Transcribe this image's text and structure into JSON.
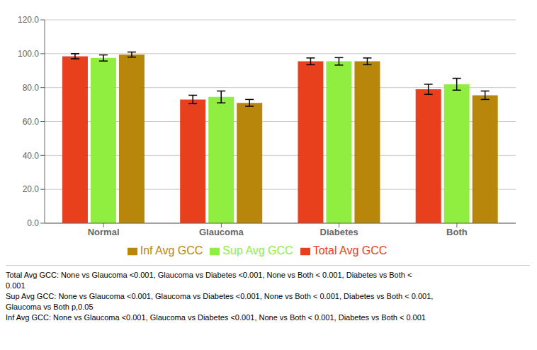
{
  "chart_data": {
    "type": "bar",
    "categories": [
      "Normal",
      "Glaucoma",
      "Diabetes",
      "Both"
    ],
    "series": [
      {
        "name": "Total Avg GCC",
        "color": "#E8401C",
        "values": [
          98.5,
          73.0,
          95.5,
          79.0
        ],
        "errors": [
          1.5,
          2.5,
          2.0,
          3.0
        ]
      },
      {
        "name": "Sup Avg GCC",
        "color": "#90EE40",
        "values": [
          97.5,
          74.5,
          95.5,
          82.0
        ],
        "errors": [
          1.8,
          3.5,
          2.2,
          3.5
        ]
      },
      {
        "name": "Inf Avg GCC",
        "color": "#B8860B",
        "values": [
          99.5,
          71.0,
          95.5,
          75.5
        ],
        "errors": [
          1.5,
          2.0,
          2.0,
          2.5
        ]
      }
    ],
    "ylim": [
      0,
      120
    ],
    "yticks": [
      {
        "value": 0,
        "label": "0.0"
      },
      {
        "value": 20,
        "label": "20.0"
      },
      {
        "value": 40,
        "label": "40.0"
      },
      {
        "value": 60,
        "label": "60.0"
      },
      {
        "value": 80,
        "label": "80.0"
      },
      {
        "value": 100,
        "label": "100.0"
      },
      {
        "value": 120,
        "label": "120.0"
      }
    ],
    "grid": true,
    "legend": "bottom",
    "annotations": [
      "Total Avg GCC: None vs Glaucoma <0.001, Glaucoma vs Diabetes <0.001, None vs Both < 0.001, Diabetes vs Both <",
      "0.001",
      "Sup Avg GCC: None vs Glaucoma <0.001, Glaucoma vs Diabetes <0.001, None vs Both < 0.001, Diabetes vs Both < 0.001,",
      "Glaucoma vs Both p,0.05",
      "Inf Avg GCC: None vs Glaucoma <0.001, Glaucoma vs Diabetes <0.001, None vs Both < 0.001, Diabetes vs Both < 0.001"
    ]
  }
}
